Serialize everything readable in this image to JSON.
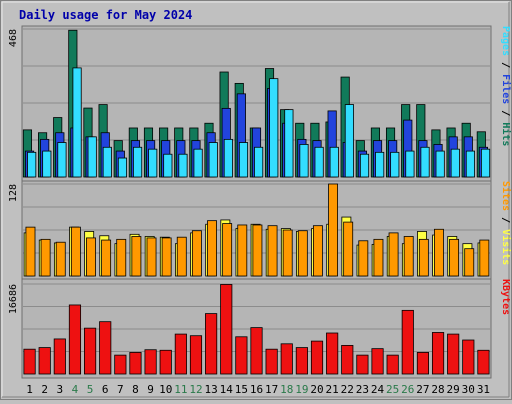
{
  "colors": {
    "background": "#c0c0c0",
    "panel": "#b5b5b5",
    "grid": "#8c8c8c",
    "title": "#0000aa",
    "day": "#000000",
    "weekend_day": "#2a7a4a",
    "hits": "#117a5a",
    "files": "#2244dd",
    "pages": "#33ddff",
    "visits": "#ffff44",
    "sites": "#ff9900",
    "kbytes": "#ee1111"
  },
  "chart_data": {
    "type": "bar",
    "title": "Daily usage for May 2024",
    "categories": [
      "1",
      "2",
      "3",
      "4",
      "5",
      "6",
      "7",
      "8",
      "9",
      "10",
      "11",
      "12",
      "13",
      "14",
      "15",
      "16",
      "17",
      "18",
      "19",
      "20",
      "21",
      "22",
      "23",
      "24",
      "25",
      "26",
      "27",
      "28",
      "29",
      "30",
      "31"
    ],
    "weekend_days": [
      "4",
      "5",
      "11",
      "12",
      "18",
      "19",
      "25",
      "26"
    ],
    "panels": [
      {
        "id": "top",
        "ymax_label": "468",
        "ylim": [
          0,
          468
        ],
        "right_label": {
          "parts": [
            {
              "text": "Pages",
              "color": "#33ddff"
            },
            {
              "text": " / ",
              "color": "#000000"
            },
            {
              "text": "Files",
              "color": "#2244dd"
            },
            {
              "text": " / ",
              "color": "#000000"
            },
            {
              "text": "Hits",
              "color": "#117a5a"
            }
          ]
        },
        "series": [
          {
            "name": "Hits",
            "color": "#117a5a",
            "values": [
              149,
              140,
              188,
              464,
              218,
              229,
              115,
              155,
              155,
              155,
              155,
              155,
              170,
              332,
              296,
              155,
              343,
              213,
              170,
              170,
              174,
              316,
              115,
              155,
              155,
              229,
              229,
              149,
              155,
              170,
              143
            ]
          },
          {
            "name": "Files",
            "color": "#2244dd",
            "values": [
              82,
              119,
              140,
              155,
              127,
              140,
              82,
              115,
              115,
              115,
              115,
              115,
              140,
              217,
              263,
              155,
              280,
              170,
              119,
              115,
              209,
              109,
              82,
              115,
              115,
              180,
              115,
              103,
              127,
              127,
              94
            ]
          },
          {
            "name": "Pages",
            "color": "#33ddff",
            "values": [
              78,
              82,
              109,
              345,
              127,
              94,
              60,
              94,
              88,
              72,
              72,
              88,
              109,
              119,
              109,
              94,
              311,
              213,
              103,
              94,
              94,
              229,
              72,
              78,
              78,
              82,
              94,
              82,
              88,
              82,
              88
            ]
          }
        ]
      },
      {
        "id": "middle",
        "ymax_label": "128",
        "ylim": [
          0,
          128
        ],
        "right_label": {
          "parts": [
            {
              "text": "Sites",
              "color": "#ff9900"
            },
            {
              "text": " / ",
              "color": "#000000"
            },
            {
              "text": "Visits",
              "color": "#ffff44"
            }
          ]
        },
        "series": [
          {
            "name": "Visits",
            "color": "#ffff44",
            "values": [
              60,
              50,
              46,
              68,
              62,
              56,
              45,
              58,
              55,
              54,
              45,
              60,
              72,
              78,
              66,
              72,
              65,
              66,
              62,
              66,
              72,
              82,
              43,
              44,
              55,
              45,
              62,
              57,
              55,
              45,
              46
            ]
          },
          {
            "name": "Sites",
            "color": "#ff9900",
            "values": [
              68,
              51,
              47,
              68,
              53,
              50,
              51,
              55,
              53,
              53,
              54,
              63,
              77,
              73,
              71,
              71,
              70,
              64,
              63,
              70,
              128,
              75,
              49,
              51,
              60,
              55,
              51,
              65,
              51,
              38,
              50
            ]
          }
        ]
      },
      {
        "id": "bottom",
        "ymax_label": "16686",
        "ylim": [
          0,
          16686
        ],
        "right_label": {
          "parts": [
            {
              "text": "KBytes",
              "color": "#ee1111"
            }
          ]
        },
        "series": [
          {
            "name": "KBytes",
            "color": "#ee1111",
            "values": [
              4600,
              4900,
              6500,
              12800,
              8500,
              9700,
              3500,
              4000,
              4500,
              4400,
              7400,
              7100,
              11200,
              16600,
              6900,
              8600,
              4600,
              5600,
              4900,
              6100,
              7600,
              5300,
              3500,
              4700,
              3500,
              11800,
              4000,
              7700,
              7400,
              6300,
              4400
            ]
          }
        ]
      }
    ]
  }
}
